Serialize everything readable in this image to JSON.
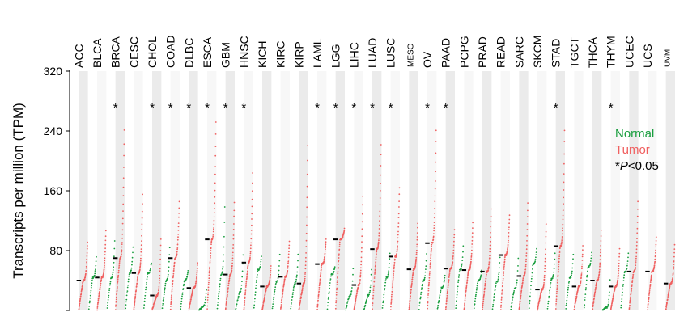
{
  "chart_data": {
    "type": "scatter",
    "ylabel": "Transcripts per million (TPM)",
    "yticks": [
      "0",
      "80",
      "160",
      "240",
      "320"
    ],
    "ylim": [
      0,
      320
    ],
    "legend_position": "right",
    "series_colors": {
      "Normal": "#1a9e3f",
      "Tumor": "#f06060"
    },
    "significance_symbol": "*",
    "categories": [
      {
        "name": "ACC",
        "tumor_max": 95,
        "tumor_median": 40,
        "normal_max": null,
        "normal_median": null,
        "sig": false
      },
      {
        "name": "BLCA",
        "tumor_max": 110,
        "tumor_median": 44,
        "normal_max": 75,
        "normal_median": 44,
        "sig": false
      },
      {
        "name": "BRCA",
        "tumor_max": 250,
        "tumor_median": 70,
        "normal_max": 100,
        "normal_median": 44,
        "sig": true
      },
      {
        "name": "CESC",
        "tumor_max": 160,
        "tumor_median": 50,
        "normal_max": 90,
        "normal_median": 50,
        "sig": false
      },
      {
        "name": "CHOL",
        "tumor_max": 100,
        "tumor_median": 20,
        "normal_max": 65,
        "normal_median": 50,
        "sig": true
      },
      {
        "name": "COAD",
        "tumor_max": 150,
        "tumor_median": 70,
        "normal_max": 90,
        "normal_median": 40,
        "sig": true
      },
      {
        "name": "DLBC",
        "tumor_max": 65,
        "tumor_median": 30,
        "normal_max": 55,
        "normal_median": 40,
        "sig": true
      },
      {
        "name": "ESCA",
        "tumor_max": 260,
        "tumor_median": 95,
        "normal_max": 30,
        "normal_median": 5,
        "sig": true
      },
      {
        "name": "GBM",
        "tumor_max": 150,
        "tumor_median": 48,
        "normal_max": 150,
        "normal_median": 48,
        "sig": true
      },
      {
        "name": "HNSC",
        "tumor_max": 190,
        "tumor_median": 64,
        "normal_max": 80,
        "normal_median": 24,
        "sig": true
      },
      {
        "name": "KICH",
        "tumor_max": 60,
        "tumor_median": 32,
        "normal_max": 75,
        "normal_median": 54,
        "sig": false
      },
      {
        "name": "KIRC",
        "tumor_max": 95,
        "tumor_median": 45,
        "normal_max": 80,
        "normal_median": 38,
        "sig": false
      },
      {
        "name": "KIRP",
        "tumor_max": 230,
        "tumor_median": 36,
        "normal_max": 80,
        "normal_median": 36,
        "sig": false
      },
      {
        "name": "LAML",
        "tumor_max": 98,
        "tumor_median": 62,
        "normal_max": null,
        "normal_median": null,
        "sig": true
      },
      {
        "name": "LGG",
        "tumor_max": 110,
        "tumor_median": 95,
        "normal_max": 60,
        "normal_median": 48,
        "sig": true
      },
      {
        "name": "LIHC",
        "tumor_max": 160,
        "tumor_median": 34,
        "normal_max": 60,
        "normal_median": 20,
        "sig": true
      },
      {
        "name": "LUAD",
        "tumor_max": 230,
        "tumor_median": 82,
        "normal_max": 60,
        "normal_median": 20,
        "sig": true
      },
      {
        "name": "LUSC",
        "tumor_max": 170,
        "tumor_median": 72,
        "normal_max": 80,
        "normal_median": 44,
        "sig": true
      },
      {
        "name": "MESO",
        "tumor_max": 120,
        "tumor_median": 55,
        "normal_max": null,
        "normal_median": null,
        "sig": false
      },
      {
        "name": "OV",
        "tumor_max": 250,
        "tumor_median": 90,
        "normal_max": 80,
        "normal_median": 40,
        "sig": true
      },
      {
        "name": "PAAD",
        "tumor_max": 110,
        "tumor_median": 56,
        "normal_max": 50,
        "normal_median": 30,
        "sig": true
      },
      {
        "name": "PCPG",
        "tumor_max": 120,
        "tumor_median": 54,
        "normal_max": 90,
        "normal_median": 54,
        "sig": false
      },
      {
        "name": "PRAD",
        "tumor_max": 140,
        "tumor_median": 52,
        "normal_max": 55,
        "normal_median": 40,
        "sig": false
      },
      {
        "name": "READ",
        "tumor_max": 130,
        "tumor_median": 74,
        "normal_max": 75,
        "normal_median": 38,
        "sig": false
      },
      {
        "name": "SARC",
        "tumor_max": 150,
        "tumor_median": 46,
        "normal_max": 75,
        "normal_median": 30,
        "sig": false
      },
      {
        "name": "SKCM",
        "tumor_max": 120,
        "tumor_median": 28,
        "normal_max": 85,
        "normal_median": 62,
        "sig": false
      },
      {
        "name": "STAD",
        "tumor_max": 250,
        "tumor_median": 86,
        "normal_max": 80,
        "normal_median": 42,
        "sig": true
      },
      {
        "name": "TGCT",
        "tumor_max": 90,
        "tumor_median": 32,
        "normal_max": 80,
        "normal_median": 44,
        "sig": false
      },
      {
        "name": "THCA",
        "tumor_max": 110,
        "tumor_median": 40,
        "normal_max": 80,
        "normal_median": 58,
        "sig": false
      },
      {
        "name": "THYM",
        "tumor_max": 85,
        "tumor_median": 32,
        "normal_max": 45,
        "normal_median": 4,
        "sig": true
      },
      {
        "name": "UCEC",
        "tumor_max": 150,
        "tumor_median": 52,
        "normal_max": 80,
        "normal_median": 52,
        "sig": false
      },
      {
        "name": "UCS",
        "tumor_max": 100,
        "tumor_median": 52,
        "normal_max": null,
        "normal_median": null,
        "sig": false
      },
      {
        "name": "UVM",
        "tumor_max": 90,
        "tumor_median": 36,
        "normal_max": null,
        "normal_median": null,
        "sig": false
      }
    ]
  },
  "legend": {
    "normal": "Normal",
    "tumor": "Tumor",
    "sig_prefix": "*",
    "sig_p": "P",
    "sig_rest": "<0.05"
  }
}
